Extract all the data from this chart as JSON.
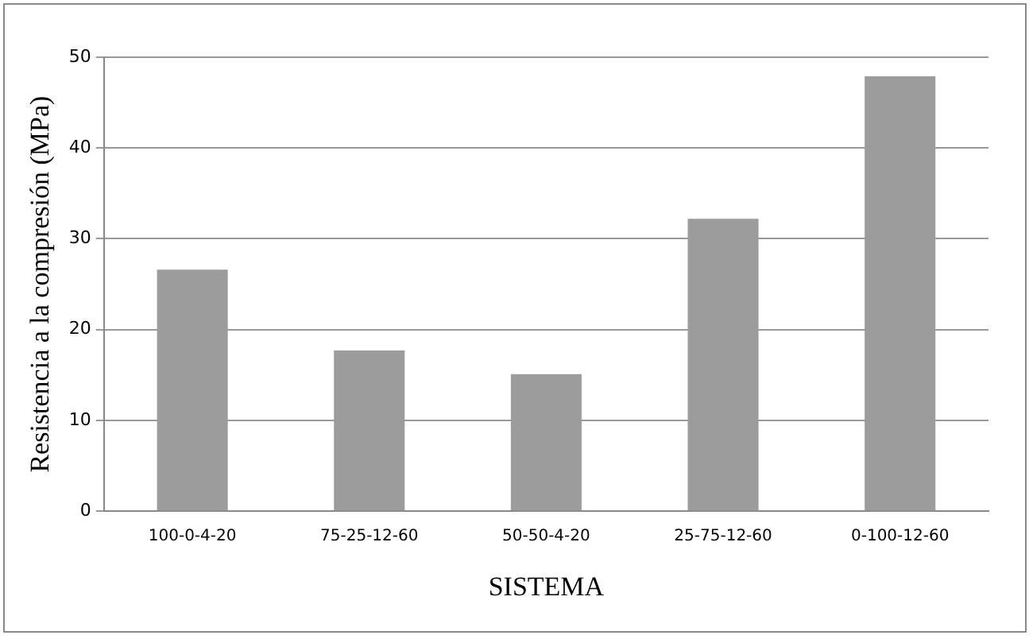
{
  "chart_data": {
    "type": "bar",
    "xlabel": "SISTEMA",
    "ylabel": "Resistencia a la compresión (MPa)",
    "categories": [
      "100-0-4-20",
      "75-25-12-60",
      "50-50-4-20",
      "25-75-12-60",
      "0-100-12-60"
    ],
    "values": [
      26.6,
      17.7,
      15.1,
      32.2,
      47.9
    ],
    "color": "#9c9c9c",
    "ylim": [
      0,
      50
    ],
    "yticks": [
      0,
      10,
      20,
      30,
      40,
      50
    ],
    "grid": "y",
    "legend": false
  }
}
